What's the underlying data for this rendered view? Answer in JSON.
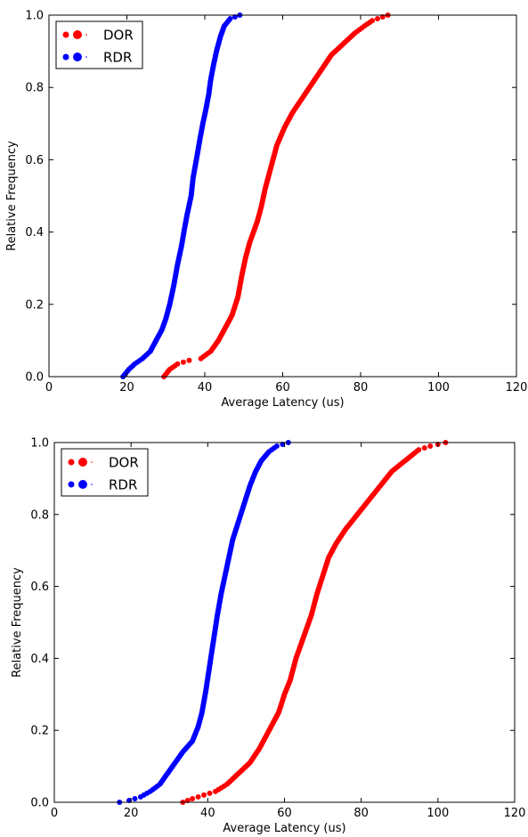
{
  "chart_data": [
    {
      "type": "scatter",
      "xlabel": "Average Latency (us)",
      "ylabel": "Relative Frequency",
      "xlim": [
        0,
        120
      ],
      "ylim": [
        0.0,
        1.0
      ],
      "xticks": [
        "0",
        "20",
        "40",
        "60",
        "80",
        "100",
        "120"
      ],
      "yticks": [
        "0.0",
        "0.2",
        "0.4",
        "0.6",
        "0.8",
        "1.0"
      ],
      "grid": false,
      "legend": "top-left",
      "series": [
        {
          "name": "DOR",
          "color": "#ff0000",
          "cdf_points": [
            [
              29.5,
              0.0
            ],
            [
              31.0,
              0.02
            ],
            [
              33.0,
              0.035
            ],
            [
              36.0,
              0.045
            ],
            [
              39.0,
              0.05
            ],
            [
              41.5,
              0.07
            ],
            [
              43.5,
              0.1
            ],
            [
              45.0,
              0.13
            ],
            [
              47.0,
              0.17
            ],
            [
              48.5,
              0.22
            ],
            [
              49.5,
              0.28
            ],
            [
              50.5,
              0.33
            ],
            [
              51.5,
              0.37
            ],
            [
              52.5,
              0.4
            ],
            [
              53.5,
              0.43
            ],
            [
              54.5,
              0.47
            ],
            [
              55.5,
              0.52
            ],
            [
              57.0,
              0.58
            ],
            [
              58.5,
              0.64
            ],
            [
              60.5,
              0.69
            ],
            [
              62.5,
              0.73
            ],
            [
              65.0,
              0.77
            ],
            [
              67.5,
              0.81
            ],
            [
              70.0,
              0.85
            ],
            [
              72.5,
              0.89
            ],
            [
              75.5,
              0.92
            ],
            [
              78.5,
              0.95
            ],
            [
              81.0,
              0.97
            ],
            [
              83.0,
              0.985
            ],
            [
              87.0,
              1.0
            ]
          ]
        },
        {
          "name": "RDR",
          "color": "#0000ff",
          "cdf_points": [
            [
              19.0,
              0.0
            ],
            [
              20.5,
              0.02
            ],
            [
              22.0,
              0.035
            ],
            [
              24.0,
              0.05
            ],
            [
              26.0,
              0.07
            ],
            [
              27.5,
              0.1
            ],
            [
              29.0,
              0.13
            ],
            [
              30.0,
              0.16
            ],
            [
              31.0,
              0.2
            ],
            [
              32.0,
              0.25
            ],
            [
              33.0,
              0.31
            ],
            [
              34.0,
              0.36
            ],
            [
              34.8,
              0.41
            ],
            [
              35.5,
              0.45
            ],
            [
              36.5,
              0.5
            ],
            [
              37.0,
              0.55
            ],
            [
              38.0,
              0.61
            ],
            [
              38.8,
              0.66
            ],
            [
              39.5,
              0.7
            ],
            [
              40.3,
              0.74
            ],
            [
              41.0,
              0.78
            ],
            [
              41.5,
              0.82
            ],
            [
              42.2,
              0.86
            ],
            [
              43.0,
              0.9
            ],
            [
              44.0,
              0.94
            ],
            [
              45.0,
              0.97
            ],
            [
              46.5,
              0.99
            ],
            [
              49.0,
              1.0
            ]
          ]
        }
      ]
    },
    {
      "type": "scatter",
      "xlabel": "Average Latency (us)",
      "ylabel": "Relative Frequency",
      "xlim": [
        0,
        120
      ],
      "ylim": [
        0.0,
        1.0
      ],
      "xticks": [
        "0",
        "20",
        "40",
        "60",
        "80",
        "100",
        "120"
      ],
      "yticks": [
        "0.0",
        "0.2",
        "0.4",
        "0.6",
        "0.8",
        "1.0"
      ],
      "grid": false,
      "legend": "top-left",
      "series": [
        {
          "name": "DOR",
          "color": "#ff0000",
          "cdf_points": [
            [
              33.5,
              0.0
            ],
            [
              36.0,
              0.01
            ],
            [
              39.0,
              0.02
            ],
            [
              42.0,
              0.03
            ],
            [
              45.0,
              0.05
            ],
            [
              48.0,
              0.08
            ],
            [
              51.0,
              0.11
            ],
            [
              53.5,
              0.15
            ],
            [
              56.0,
              0.2
            ],
            [
              58.5,
              0.25
            ],
            [
              60.0,
              0.3
            ],
            [
              61.5,
              0.34
            ],
            [
              63.0,
              0.4
            ],
            [
              65.0,
              0.46
            ],
            [
              67.0,
              0.52
            ],
            [
              68.5,
              0.58
            ],
            [
              70.0,
              0.63
            ],
            [
              71.5,
              0.68
            ],
            [
              73.5,
              0.72
            ],
            [
              76.0,
              0.76
            ],
            [
              79.0,
              0.8
            ],
            [
              82.0,
              0.84
            ],
            [
              85.0,
              0.88
            ],
            [
              88.0,
              0.92
            ],
            [
              91.5,
              0.95
            ],
            [
              95.0,
              0.98
            ],
            [
              98.0,
              0.99
            ],
            [
              102.0,
              1.0
            ]
          ]
        },
        {
          "name": "RDR",
          "color": "#0000ff",
          "cdf_points": [
            [
              17.0,
              0.0
            ],
            [
              19.5,
              0.005
            ],
            [
              22.5,
              0.015
            ],
            [
              25.0,
              0.03
            ],
            [
              27.5,
              0.05
            ],
            [
              29.5,
              0.08
            ],
            [
              31.5,
              0.11
            ],
            [
              33.5,
              0.14
            ],
            [
              36.0,
              0.17
            ],
            [
              37.5,
              0.21
            ],
            [
              38.5,
              0.25
            ],
            [
              39.5,
              0.31
            ],
            [
              40.5,
              0.38
            ],
            [
              41.5,
              0.45
            ],
            [
              42.5,
              0.52
            ],
            [
              43.5,
              0.58
            ],
            [
              44.5,
              0.63
            ],
            [
              45.5,
              0.68
            ],
            [
              46.5,
              0.73
            ],
            [
              48.0,
              0.78
            ],
            [
              49.5,
              0.83
            ],
            [
              51.0,
              0.88
            ],
            [
              52.5,
              0.92
            ],
            [
              54.0,
              0.95
            ],
            [
              56.0,
              0.975
            ],
            [
              58.0,
              0.99
            ],
            [
              61.0,
              1.0
            ]
          ]
        }
      ]
    }
  ]
}
